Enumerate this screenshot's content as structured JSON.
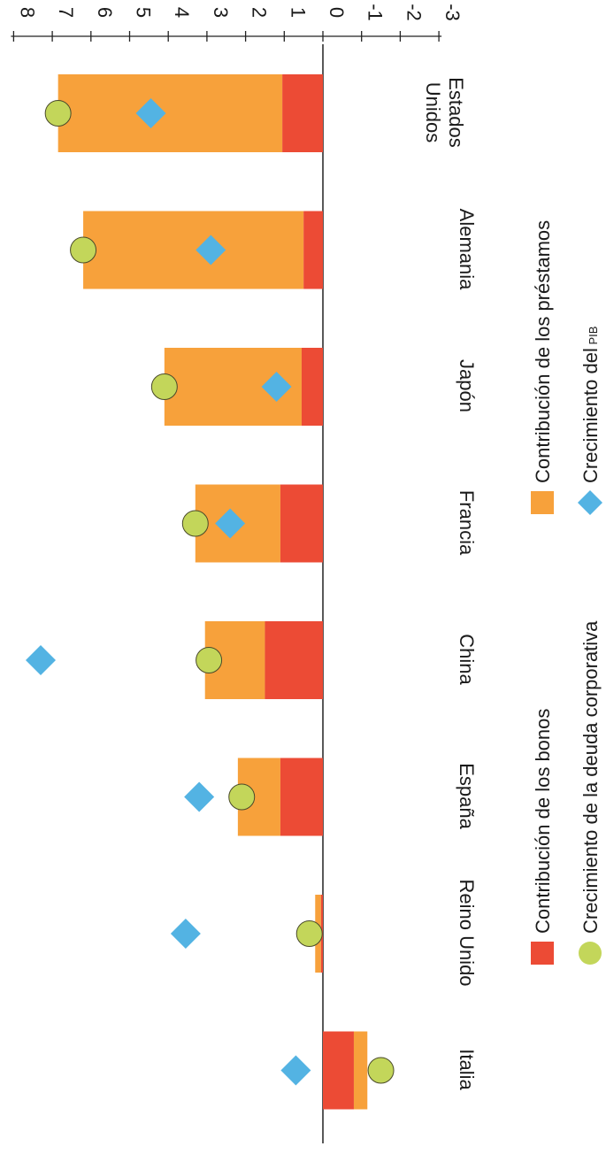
{
  "chart_data": {
    "type": "bar",
    "orientation": "horizontal-rotated",
    "stacked": true,
    "categories": [
      "Estados Unidos",
      "Alemania",
      "Japón",
      "Francia",
      "China",
      "España",
      "Reino Unido",
      "Italia"
    ],
    "series": [
      {
        "name": "Contribución de los bonos",
        "kind": "bar",
        "color": "#ec4b35",
        "values": [
          1.05,
          0.5,
          0.55,
          1.1,
          1.5,
          1.1,
          0.05,
          -0.8
        ]
      },
      {
        "name": "Contribución de los préstamos",
        "kind": "bar",
        "color": "#f7a13b",
        "values": [
          5.8,
          5.7,
          3.55,
          2.2,
          1.55,
          1.1,
          0.15,
          -0.35
        ]
      },
      {
        "name": "Crecimiento de la deuda corporativa",
        "kind": "circle",
        "color": "#c3d65a",
        "values": [
          6.85,
          6.2,
          4.1,
          3.3,
          2.95,
          2.1,
          0.35,
          -1.5
        ]
      },
      {
        "name": "Crecimiento del PIB",
        "kind": "diamond",
        "color": "#53b3e3",
        "values": [
          4.45,
          2.9,
          1.2,
          2.4,
          7.3,
          3.2,
          3.55,
          0.7
        ]
      }
    ],
    "ylim": [
      -3,
      8
    ],
    "yticks": [
      -3,
      -2,
      -1,
      0,
      1,
      2,
      3,
      4,
      5,
      6,
      7,
      8
    ],
    "ytick_labels": [
      "-3",
      "-2",
      "-1",
      "0",
      "1",
      "2",
      "3",
      "4",
      "5",
      "6",
      "7",
      "8"
    ],
    "legend": {
      "items": [
        {
          "label": "Contribución de los bonos",
          "marker": "square",
          "color": "#ec4b35"
        },
        {
          "label": "Contribución de los préstamos",
          "marker": "square",
          "color": "#f7a13b"
        },
        {
          "label": "Crecimiento de la deuda corporativa",
          "marker": "circle",
          "color": "#c3d65a"
        },
        {
          "label": "Crecimiento del",
          "label_small": "PIB",
          "marker": "diamond",
          "color": "#53b3e3"
        }
      ]
    },
    "grid": false
  }
}
